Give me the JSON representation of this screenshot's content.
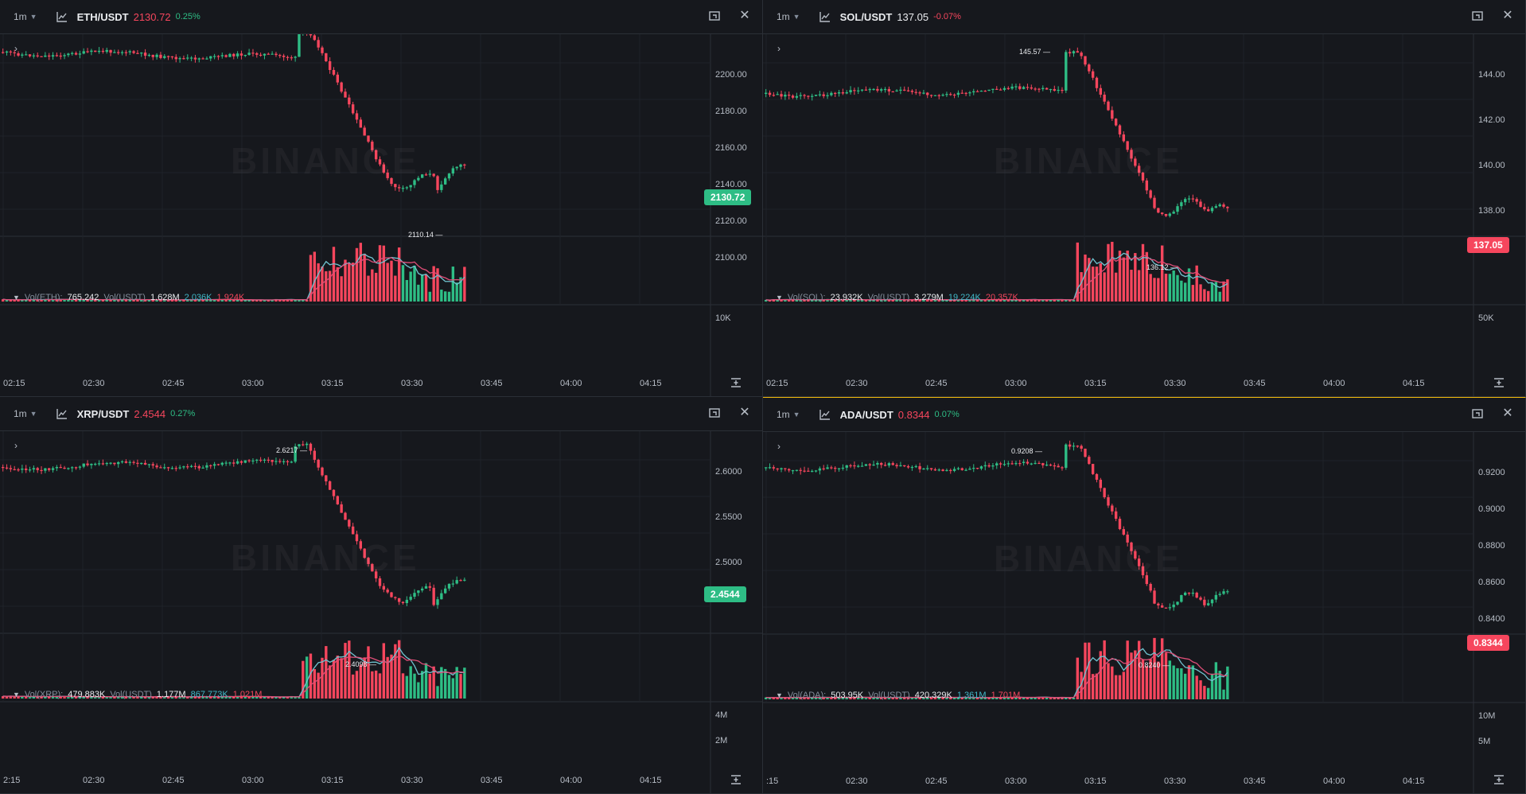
{
  "panels": [
    {
      "id": "eth",
      "interval": "1m",
      "symbol": "ETH/USDT",
      "price": "2130.72",
      "change": "0.25%",
      "price_color": "#f6465d",
      "change_color": "#2ebd85",
      "tag_price": "2130.72",
      "tag_color": "#2ebd85",
      "y_axis": [
        "2200.00",
        "2180.00",
        "2160.00",
        "2140.00",
        "2120.00",
        "2100.00"
      ],
      "vol_axis": [
        "10K"
      ],
      "time_axis": [
        "02:15",
        "02:30",
        "02:45",
        "03:00",
        "03:15",
        "03:30",
        "03:45",
        "04:00",
        "04:15"
      ],
      "vol_legend": {
        "base_label": "Vol(ETH):",
        "base_value": "765.242",
        "quote_label": "Vol(USDT)",
        "quote_value": "1.628M",
        "ma1": "2.036K",
        "ma2": "1.924K"
      },
      "annotations": {
        "low": "2110.14"
      },
      "watermark": "BINANCE"
    },
    {
      "id": "sol",
      "interval": "1m",
      "symbol": "SOL/USDT",
      "price": "137.05",
      "change": "-0.07%",
      "price_color": "#eaecef",
      "change_color": "#f6465d",
      "tag_price": "137.05",
      "tag_color": "#f6465d",
      "y_axis": [
        "144.00",
        "142.00",
        "140.00",
        "138.00"
      ],
      "vol_axis": [
        "50K"
      ],
      "time_axis": [
        "02:15",
        "02:30",
        "02:45",
        "03:00",
        "03:15",
        "03:30",
        "03:45",
        "04:00",
        "04:15"
      ],
      "vol_legend": {
        "base_label": "Vol(SOL):",
        "base_value": "23.932K",
        "quote_label": "Vol(USDT)",
        "quote_value": "3.279M",
        "ma1": "19.224K",
        "ma2": "20.357K"
      },
      "annotations": {
        "high": "145.57",
        "low": "136.12"
      },
      "watermark": "BINANCE"
    },
    {
      "id": "xrp",
      "interval": "1m",
      "symbol": "XRP/USDT",
      "price": "2.4544",
      "change": "0.27%",
      "price_color": "#f6465d",
      "change_color": "#2ebd85",
      "tag_price": "2.4544",
      "tag_color": "#2ebd85",
      "y_axis": [
        "2.6000",
        "2.5500",
        "2.5000"
      ],
      "vol_axis": [
        "4M",
        "2M"
      ],
      "time_axis": [
        "2:15",
        "02:30",
        "02:45",
        "03:00",
        "03:15",
        "03:30",
        "03:45",
        "04:00",
        "04:15"
      ],
      "vol_legend": {
        "base_label": "Vol(XRP):",
        "base_value": "479.883K",
        "quote_label": "Vol(USDT)",
        "quote_value": "1.177M",
        "ma1": "867.773K",
        "ma2": "1.021M"
      },
      "annotations": {
        "high": "2.6217",
        "low": "2.4098"
      },
      "watermark": "BINANCE"
    },
    {
      "id": "ada",
      "interval": "1m",
      "symbol": "ADA/USDT",
      "price": "0.8344",
      "change": "0.07%",
      "price_color": "#f6465d",
      "change_color": "#2ebd85",
      "tag_price": "0.8344",
      "tag_color": "#f6465d",
      "y_axis": [
        "0.9200",
        "0.9000",
        "0.8800",
        "0.8600",
        "0.8400"
      ],
      "vol_axis": [
        "10M",
        "5M"
      ],
      "time_axis": [
        ":15",
        "02:30",
        "02:45",
        "03:00",
        "03:15",
        "03:30",
        "03:45",
        "04:00",
        "04:15"
      ],
      "vol_legend": {
        "base_label": "Vol(ADA):",
        "base_value": "503.95K",
        "quote_label": "Vol(USDT)",
        "quote_value": "420.329K",
        "ma1": "1.361M",
        "ma2": "1.701M"
      },
      "annotations": {
        "high": "0.9208",
        "low": "0.8240"
      },
      "watermark": "BINANCE"
    }
  ]
}
